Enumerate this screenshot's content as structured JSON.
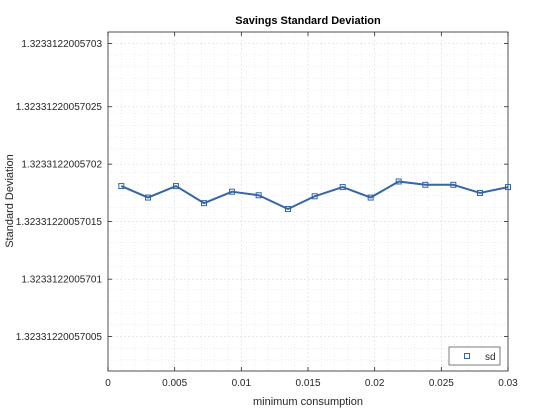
{
  "chart_data": {
    "type": "line",
    "title": "Savings Standard Deviation",
    "xlabel": "minimum consumption",
    "ylabel": "Standard Deviation",
    "xlim": [
      0,
      0.03
    ],
    "ylim": [
      1.32331220057002,
      1.323312200570315
    ],
    "x_ticks": [
      0,
      0.005,
      0.01,
      0.015,
      0.02,
      0.025,
      0.03
    ],
    "x_tick_labels": [
      "0",
      "0.005",
      "0.01",
      "0.015",
      "0.02",
      "0.025",
      "0.03"
    ],
    "y_ticks": [
      1.323312200570305,
      1.32331220057025,
      1.3233122005702,
      1.32331220057015,
      1.3233122005701,
      1.32331220057005
    ],
    "y_tick_labels": [
      "1.3233122005703",
      "1.32331220057025",
      "1.3233122005702",
      "1.32331220057015",
      "1.3233122005701",
      "1.32331220057005"
    ],
    "grid": true,
    "minor_grid": true,
    "legend_position": "bottom-right",
    "series": [
      {
        "name": "sd",
        "color": "#3465a4",
        "marker": "square",
        "x": [
          0.001,
          0.003,
          0.0051,
          0.0072,
          0.0093,
          0.0113,
          0.0135,
          0.0155,
          0.0176,
          0.0197,
          0.0218,
          0.0238,
          0.0259,
          0.0279,
          0.03
        ],
        "y": [
          1.323312200570181,
          1.323312200570171,
          1.323312200570181,
          1.323312200570166,
          1.323312200570176,
          1.323312200570173,
          1.323312200570161,
          1.323312200570172,
          1.32331220057018,
          1.323312200570171,
          1.323312200570185,
          1.323312200570182,
          1.323312200570182,
          1.323312200570175,
          1.32331220057018
        ]
      }
    ]
  }
}
